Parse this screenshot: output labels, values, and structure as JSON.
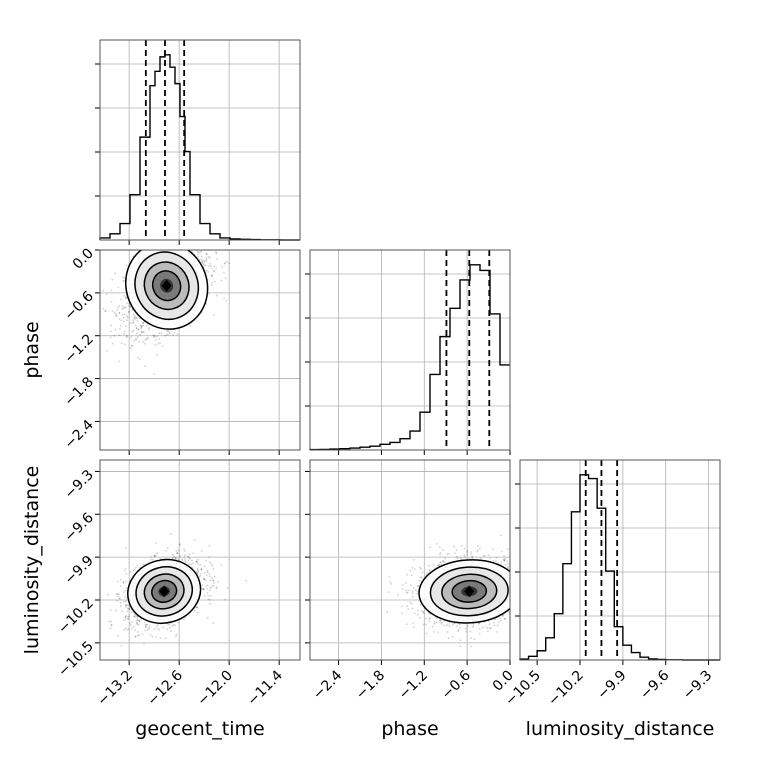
{
  "chart_data": {
    "type": "corner",
    "parameters": [
      {
        "name": "geocent_time",
        "range": [
          -13.55,
          -11.15
        ],
        "ticks": [
          -13.2,
          -12.6,
          -12.0,
          -11.4
        ],
        "tick_labels": [
          "−13.2",
          "−12.6",
          "−12.0",
          "−11.4"
        ]
      },
      {
        "name": "phase",
        "range": [
          -2.8,
          0.0
        ],
        "ticks": [
          -2.4,
          -1.8,
          -1.2,
          -0.6,
          0.0
        ],
        "tick_labels": [
          "−2.4",
          "−1.8",
          "−1.2",
          "−0.6",
          "0.0"
        ]
      },
      {
        "name": "luminosity_distance",
        "range": [
          -10.62,
          -9.22
        ],
        "ticks": [
          -10.5,
          -10.2,
          -9.9,
          -9.6,
          -9.3
        ],
        "tick_labels": [
          "−10.5",
          "−10.2",
          "−9.9",
          "−9.6",
          "−9.3"
        ]
      }
    ],
    "marginals": [
      {
        "parameter": "geocent_time",
        "quantiles": [
          -13.0,
          -12.77,
          -12.54
        ],
        "bin_edges": [
          -13.55,
          -13.43,
          -13.31,
          -13.19,
          -13.07,
          -12.95,
          -12.89,
          -12.83,
          -12.77,
          -12.71,
          -12.65,
          -12.59,
          -12.53,
          -12.47,
          -12.35,
          -12.23,
          -12.11,
          -11.99,
          -11.87,
          -11.75,
          -11.63,
          -11.51,
          -11.39,
          -11.27,
          -11.15
        ],
        "counts": [
          1,
          3,
          8,
          22,
          50,
          75,
          82,
          89,
          90,
          84,
          76,
          60,
          43,
          22,
          8,
          3,
          1,
          0.5,
          0.3,
          0.2,
          0.1,
          0.1,
          0,
          0
        ]
      },
      {
        "parameter": "phase",
        "quantiles": [
          -0.89,
          -0.57,
          -0.29
        ],
        "bin_edges": [
          -2.8,
          -2.66,
          -2.52,
          -2.38,
          -2.24,
          -2.1,
          -1.96,
          -1.82,
          -1.68,
          -1.54,
          -1.4,
          -1.26,
          -1.12,
          -0.98,
          -0.84,
          -0.7,
          -0.56,
          -0.42,
          -0.28,
          -0.14,
          0.0
        ],
        "counts": [
          0.2,
          0.3,
          0.5,
          0.7,
          1,
          1.5,
          2,
          3,
          4,
          6,
          10,
          20,
          40,
          60,
          75,
          90,
          98,
          95,
          72,
          45
        ]
      },
      {
        "parameter": "luminosity_distance",
        "quantiles": [
          -10.16,
          -10.05,
          -9.94
        ],
        "bin_edges": [
          -10.62,
          -10.56,
          -10.5,
          -10.44,
          -10.38,
          -10.32,
          -10.26,
          -10.2,
          -10.14,
          -10.08,
          -10.02,
          -9.96,
          -9.9,
          -9.84,
          -9.78,
          -9.72,
          -9.66,
          -9.6,
          -9.54,
          -9.48,
          -9.42,
          -9.36,
          -9.3,
          -9.22
        ],
        "counts": [
          0.5,
          2,
          5,
          12,
          25,
          52,
          80,
          100,
          98,
          82,
          48,
          18,
          8,
          4,
          1.5,
          0.6,
          0.3,
          0.1,
          0.1,
          0,
          0,
          0,
          0
        ]
      }
    ],
    "joint": [
      {
        "x": "geocent_time",
        "y": "phase",
        "center": [
          -12.75,
          -0.5
        ],
        "spread": [
          0.22,
          0.28
        ],
        "corr": 0.45
      },
      {
        "x": "geocent_time",
        "y": "luminosity_distance",
        "center": [
          -12.78,
          -10.14
        ],
        "spread": [
          0.2,
          0.1
        ],
        "corr": 0.35
      },
      {
        "x": "phase",
        "y": "luminosity_distance",
        "center": [
          -0.57,
          -10.14
        ],
        "spread": [
          0.32,
          0.1
        ],
        "corr": 0.1
      }
    ],
    "grid": true
  }
}
